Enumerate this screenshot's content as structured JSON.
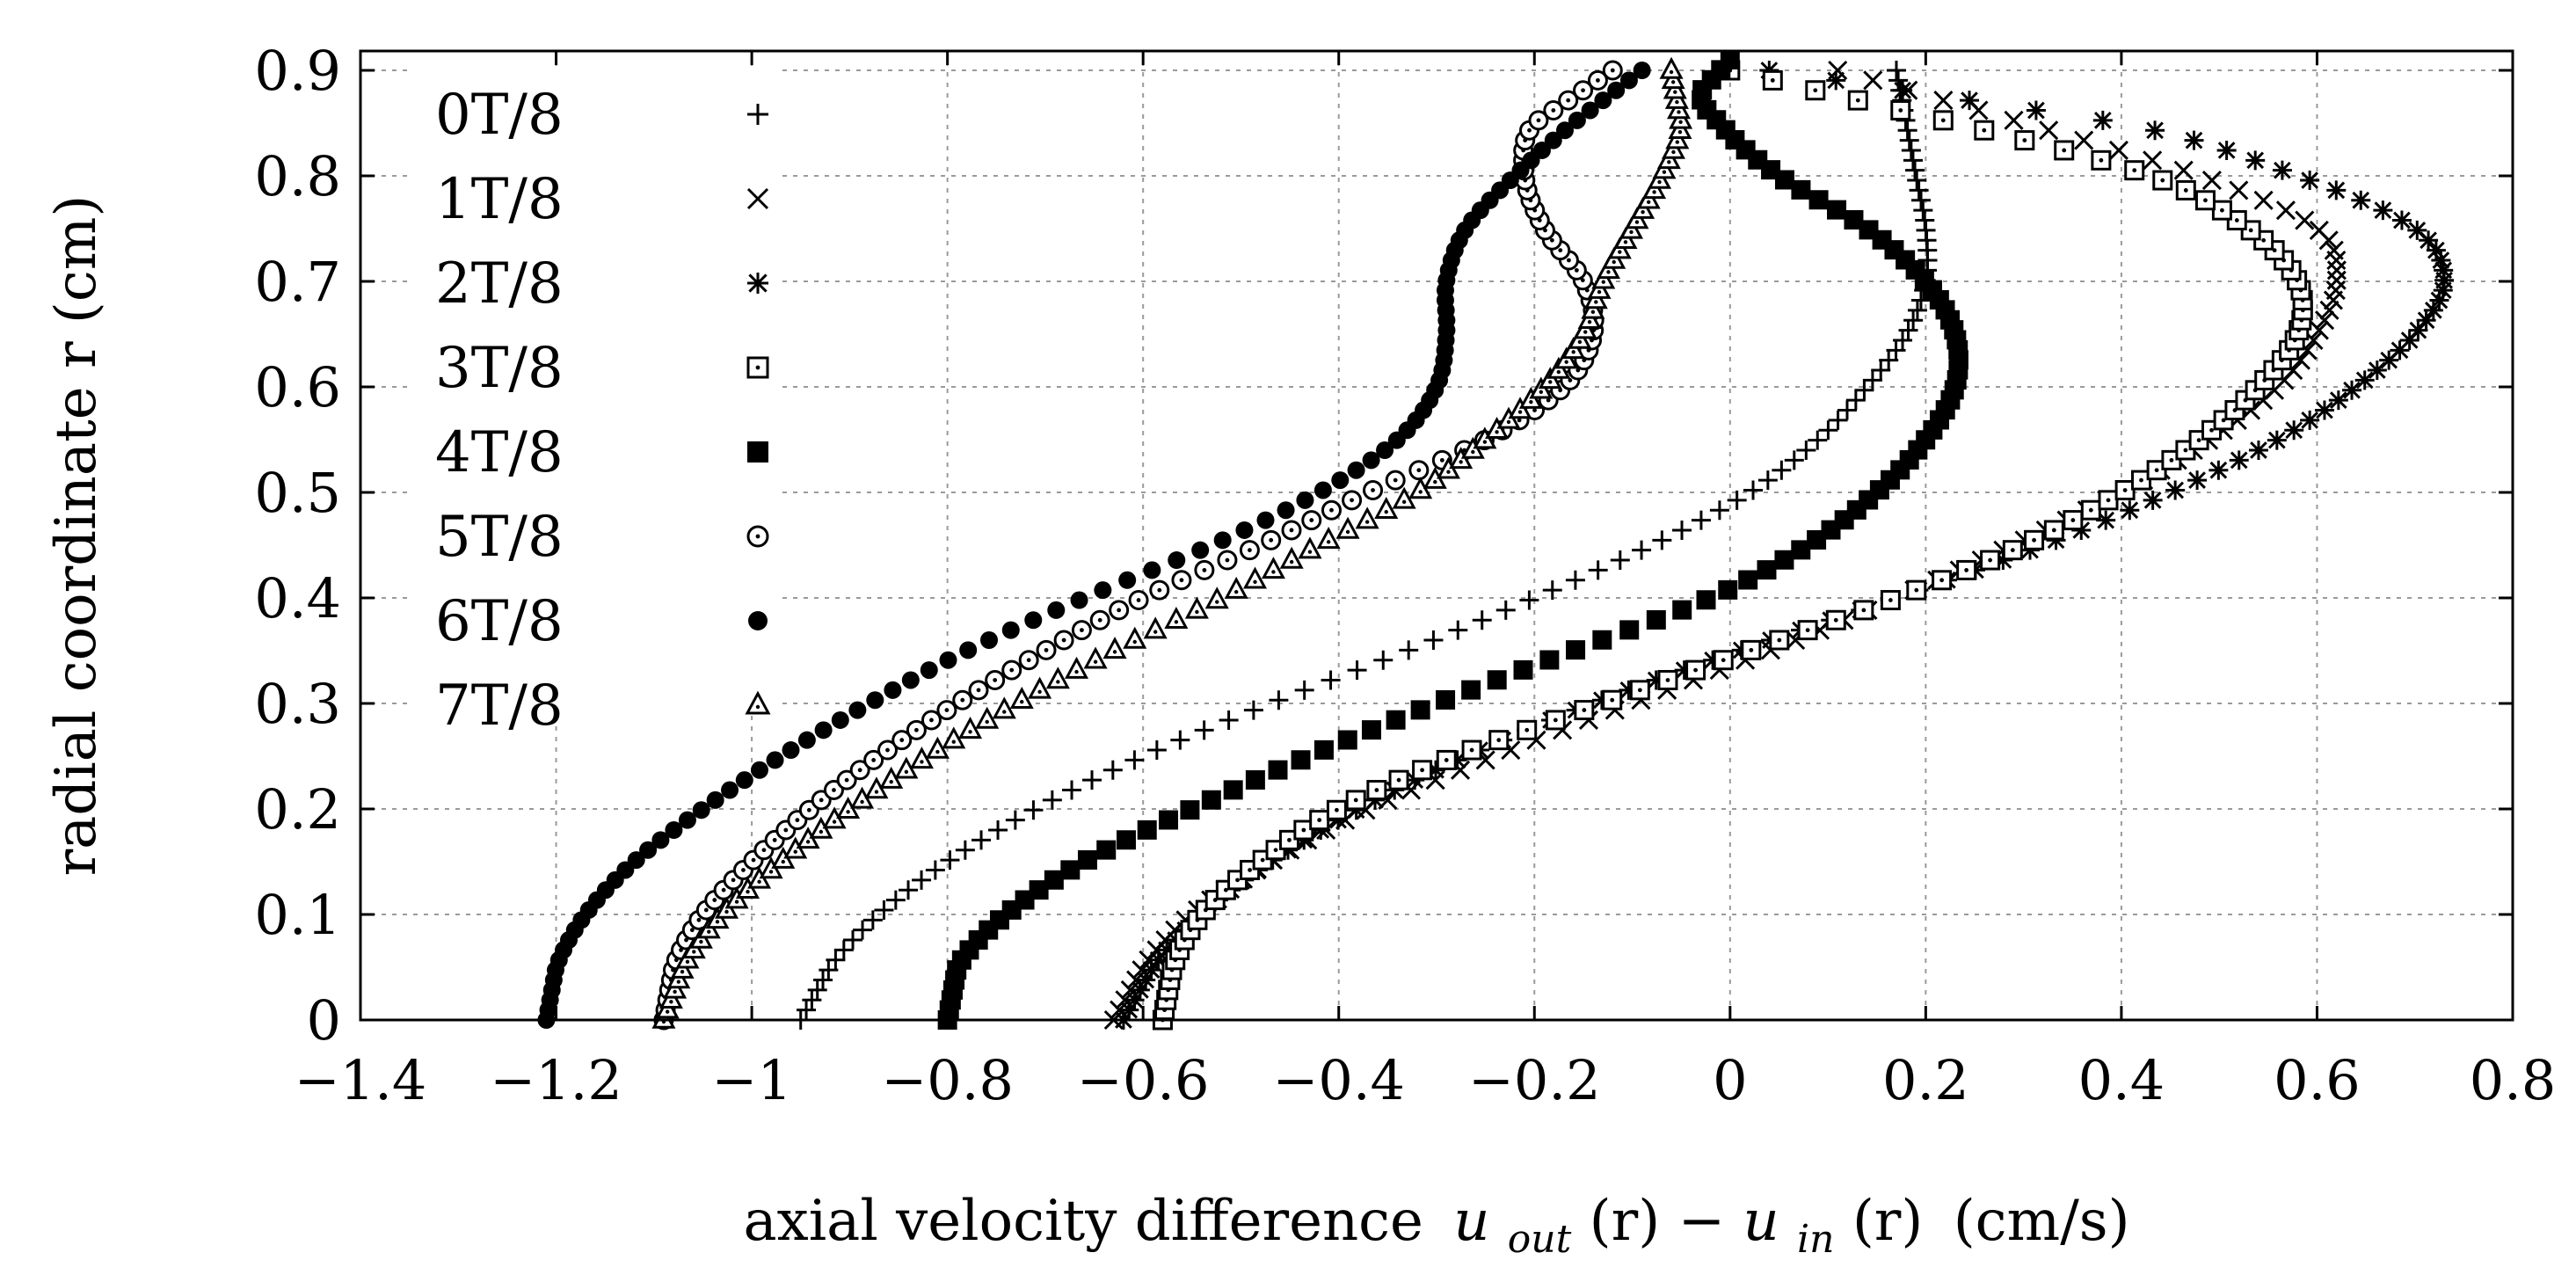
{
  "chart_data": {
    "type": "scatter",
    "title": "",
    "xlabel_text": "axial velocity difference",
    "xlabel_math": {
      "u1": "u",
      "sub1": "out",
      "mid": "(r) − ",
      "u2": "u",
      "sub2": "in",
      "tail": "(r)"
    },
    "xlabel_units": "(cm/s)",
    "ylabel": "radial coordinate r (cm)",
    "xlim": [
      -1.4,
      0.8
    ],
    "ylim": [
      0,
      0.92
    ],
    "xticks": [
      -1.4,
      -1.2,
      -1,
      -0.8,
      -0.6,
      -0.4,
      -0.2,
      0,
      0.2,
      0.4,
      0.6,
      0.8
    ],
    "xtick_labels": [
      "−1.4",
      "−1.2",
      "−1",
      "−0.8",
      "−0.6",
      "−0.4",
      "−0.2",
      "0",
      "0.2",
      "0.4",
      "0.6",
      "0.8"
    ],
    "yticks": [
      0,
      0.1,
      0.2,
      0.3,
      0.4,
      0.5,
      0.6,
      0.7,
      0.8,
      0.9
    ],
    "ytick_labels": [
      "0",
      "0.1",
      "0.2",
      "0.3",
      "0.4",
      "0.5",
      "0.6",
      "0.7",
      "0.8",
      "0.9"
    ],
    "grid": true,
    "legend_position": "top-left",
    "series": [
      {
        "name": "0T/8",
        "marker": "plus",
        "r": [
          0,
          0.05,
          0.1,
          0.15,
          0.2,
          0.25,
          0.3,
          0.35,
          0.4,
          0.45,
          0.5,
          0.55,
          0.6,
          0.65,
          0.7,
          0.75,
          0.8,
          0.85,
          0.9
        ],
        "u": [
          -0.95,
          -0.92,
          -0.87,
          -0.8,
          -0.71,
          -0.6,
          -0.47,
          -0.33,
          -0.2,
          -0.08,
          0.02,
          0.09,
          0.14,
          0.18,
          0.2,
          0.2,
          0.19,
          0.18,
          0.17
        ]
      },
      {
        "name": "1T/8",
        "marker": "cross",
        "r": [
          0,
          0.05,
          0.1,
          0.15,
          0.2,
          0.25,
          0.3,
          0.35,
          0.4,
          0.45,
          0.5,
          0.55,
          0.6,
          0.65,
          0.7,
          0.75,
          0.8,
          0.85,
          0.9
        ],
        "u": [
          -0.63,
          -0.6,
          -0.55,
          -0.47,
          -0.37,
          -0.24,
          -0.1,
          0.04,
          0.17,
          0.29,
          0.4,
          0.49,
          0.56,
          0.6,
          0.62,
          0.6,
          0.48,
          0.3,
          0.11
        ]
      },
      {
        "name": "2T/8",
        "marker": "star",
        "r": [
          0,
          0.05,
          0.1,
          0.15,
          0.2,
          0.25,
          0.3,
          0.35,
          0.4,
          0.45,
          0.5,
          0.55,
          0.6,
          0.65,
          0.7,
          0.75,
          0.8,
          0.85,
          0.9
        ],
        "u": [
          -0.62,
          -0.59,
          -0.54,
          -0.47,
          -0.38,
          -0.27,
          -0.14,
          0.01,
          0.17,
          0.32,
          0.45,
          0.56,
          0.64,
          0.7,
          0.73,
          0.7,
          0.58,
          0.4,
          0.04
        ]
      },
      {
        "name": "3T/8",
        "marker": "square-dot",
        "r": [
          0,
          0.05,
          0.1,
          0.15,
          0.2,
          0.25,
          0.3,
          0.35,
          0.4,
          0.45,
          0.5,
          0.55,
          0.6,
          0.65,
          0.7,
          0.75,
          0.8,
          0.85,
          0.9
        ],
        "u": [
          -0.58,
          -0.57,
          -0.54,
          -0.48,
          -0.4,
          -0.28,
          -0.13,
          0.02,
          0.17,
          0.3,
          0.4,
          0.48,
          0.54,
          0.58,
          0.58,
          0.53,
          0.43,
          0.23,
          0.0
        ]
      },
      {
        "name": "4T/8",
        "marker": "filled-square",
        "r": [
          0,
          0.05,
          0.1,
          0.15,
          0.2,
          0.25,
          0.3,
          0.35,
          0.4,
          0.45,
          0.5,
          0.55,
          0.6,
          0.65,
          0.7,
          0.75,
          0.8,
          0.85,
          0.88,
          0.91
        ],
        "u": [
          -0.8,
          -0.79,
          -0.74,
          -0.66,
          -0.55,
          -0.43,
          -0.3,
          -0.16,
          -0.02,
          0.08,
          0.15,
          0.2,
          0.23,
          0.23,
          0.2,
          0.14,
          0.05,
          -0.01,
          -0.03,
          0.0
        ]
      },
      {
        "name": "5T/8",
        "marker": "circle-dot",
        "r": [
          0,
          0.05,
          0.1,
          0.15,
          0.2,
          0.25,
          0.3,
          0.35,
          0.4,
          0.45,
          0.5,
          0.55,
          0.6,
          0.65,
          0.7,
          0.75,
          0.8,
          0.85,
          0.9
        ],
        "u": [
          -1.09,
          -1.08,
          -1.05,
          -1.0,
          -0.94,
          -0.87,
          -0.79,
          -0.7,
          -0.6,
          -0.48,
          -0.37,
          -0.25,
          -0.17,
          -0.14,
          -0.15,
          -0.19,
          -0.21,
          -0.2,
          -0.12
        ]
      },
      {
        "name": "6T/8",
        "marker": "filled-circle",
        "r": [
          0,
          0.05,
          0.1,
          0.15,
          0.2,
          0.25,
          0.3,
          0.35,
          0.4,
          0.45,
          0.5,
          0.55,
          0.6,
          0.65,
          0.7,
          0.75,
          0.8,
          0.85,
          0.9
        ],
        "u": [
          -1.21,
          -1.2,
          -1.17,
          -1.12,
          -1.05,
          -0.97,
          -0.88,
          -0.78,
          -0.66,
          -0.53,
          -0.42,
          -0.34,
          -0.3,
          -0.29,
          -0.29,
          -0.27,
          -0.22,
          -0.16,
          -0.09
        ]
      },
      {
        "name": "7T/8",
        "marker": "triangle-dot",
        "r": [
          0,
          0.05,
          0.1,
          0.15,
          0.2,
          0.25,
          0.3,
          0.35,
          0.4,
          0.45,
          0.5,
          0.55,
          0.6,
          0.65,
          0.7,
          0.75,
          0.8,
          0.85,
          0.9
        ],
        "u": [
          -1.09,
          -1.07,
          -1.03,
          -0.97,
          -0.9,
          -0.82,
          -0.73,
          -0.63,
          -0.52,
          -0.42,
          -0.32,
          -0.25,
          -0.19,
          -0.15,
          -0.13,
          -0.1,
          -0.07,
          -0.05,
          -0.06
        ]
      }
    ]
  }
}
